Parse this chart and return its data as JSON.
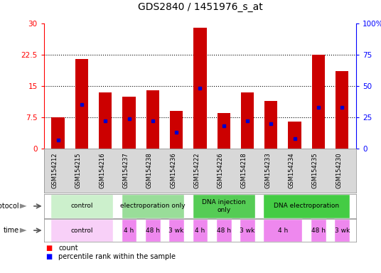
{
  "title": "GDS2840 / 1451976_s_at",
  "samples": [
    "GSM154212",
    "GSM154215",
    "GSM154216",
    "GSM154237",
    "GSM154238",
    "GSM154236",
    "GSM154222",
    "GSM154226",
    "GSM154218",
    "GSM154233",
    "GSM154234",
    "GSM154235",
    "GSM154230"
  ],
  "counts": [
    7.5,
    21.5,
    13.5,
    12.5,
    14.0,
    9.0,
    29.0,
    8.5,
    13.5,
    11.5,
    6.5,
    22.5,
    18.5
  ],
  "percentiles_pct": [
    7,
    35,
    22,
    24,
    22,
    13,
    48,
    18,
    22,
    20,
    8,
    33,
    33
  ],
  "ylim_left": [
    0,
    30
  ],
  "ylim_right": [
    0,
    100
  ],
  "yticks_left": [
    0,
    7.5,
    15,
    22.5,
    30
  ],
  "yticks_right": [
    0,
    25,
    50,
    75,
    100
  ],
  "bar_color": "#cc0000",
  "dot_color": "#0000cc",
  "bar_width": 0.55,
  "proto_groups": [
    {
      "label": "control",
      "indices": [
        0,
        1,
        2
      ],
      "color": "#ccf0cc"
    },
    {
      "label": "electroporation only",
      "indices": [
        3,
        4,
        5
      ],
      "color": "#99dd99"
    },
    {
      "label": "DNA injection\nonly",
      "indices": [
        6,
        7,
        8
      ],
      "color": "#55cc55"
    },
    {
      "label": "DNA electroporation",
      "indices": [
        9,
        10,
        11,
        12
      ],
      "color": "#44cc44"
    }
  ],
  "time_groups": [
    {
      "label": "control",
      "indices": [
        0,
        1,
        2
      ],
      "color": "#f8d0f8"
    },
    {
      "label": "4 h",
      "indices": [
        3
      ],
      "color": "#ee88ee"
    },
    {
      "label": "48 h",
      "indices": [
        4
      ],
      "color": "#ee88ee"
    },
    {
      "label": "3 wk",
      "indices": [
        5
      ],
      "color": "#ee88ee"
    },
    {
      "label": "4 h",
      "indices": [
        6
      ],
      "color": "#ee88ee"
    },
    {
      "label": "48 h",
      "indices": [
        7
      ],
      "color": "#ee88ee"
    },
    {
      "label": "3 wk",
      "indices": [
        8
      ],
      "color": "#ee88ee"
    },
    {
      "label": "4 h",
      "indices": [
        9,
        10
      ],
      "color": "#ee88ee"
    },
    {
      "label": "48 h",
      "indices": [
        11
      ],
      "color": "#ee88ee"
    },
    {
      "label": "3 wk",
      "indices": [
        12
      ],
      "color": "#ee88ee"
    }
  ],
  "tick_bg": "#d8d8d8",
  "chart_bg": "#ffffff",
  "label_fontsize": 7,
  "tick_fontsize": 7.5,
  "sample_fontsize": 6,
  "title_fontsize": 10
}
